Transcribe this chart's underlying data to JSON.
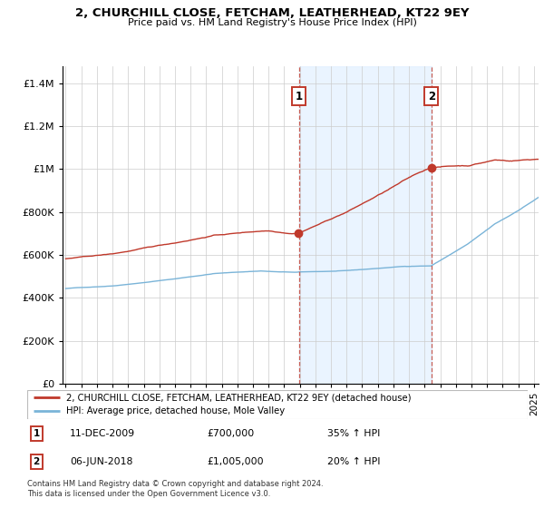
{
  "title": "2, CHURCHILL CLOSE, FETCHAM, LEATHERHEAD, KT22 9EY",
  "subtitle": "Price paid vs. HM Land Registry's House Price Index (HPI)",
  "yticks": [
    0,
    200000,
    400000,
    600000,
    800000,
    1000000,
    1200000,
    1400000
  ],
  "ytick_labels": [
    "£0",
    "£200K",
    "£400K",
    "£600K",
    "£800K",
    "£1M",
    "£1.2M",
    "£1.4M"
  ],
  "xlim_start": 1994.8,
  "xlim_end": 2025.3,
  "ylim": [
    0,
    1480000
  ],
  "hpi_color": "#7ab4d8",
  "price_color": "#c0392b",
  "sale1_date_num": 2009.94,
  "sale1_price": 700000,
  "sale1_label": "1",
  "sale2_date_num": 2018.43,
  "sale2_price": 1005000,
  "sale2_label": "2",
  "legend_price_label": "2, CHURCHILL CLOSE, FETCHAM, LEATHERHEAD, KT22 9EY (detached house)",
  "legend_hpi_label": "HPI: Average price, detached house, Mole Valley",
  "annotation1_label": "1",
  "annotation1_date": "11-DEC-2009",
  "annotation1_price": "£700,000",
  "annotation1_hpi": "35% ↑ HPI",
  "annotation2_label": "2",
  "annotation2_date": "06-JUN-2018",
  "annotation2_price": "£1,005,000",
  "annotation2_hpi": "20% ↑ HPI",
  "footer": "Contains HM Land Registry data © Crown copyright and database right 2024.\nThis data is licensed under the Open Government Licence v3.0.",
  "background_color": "#ffffff",
  "plot_bg_color": "#ffffff",
  "grid_color": "#cccccc",
  "shaded_region_color": "#ddeeff"
}
